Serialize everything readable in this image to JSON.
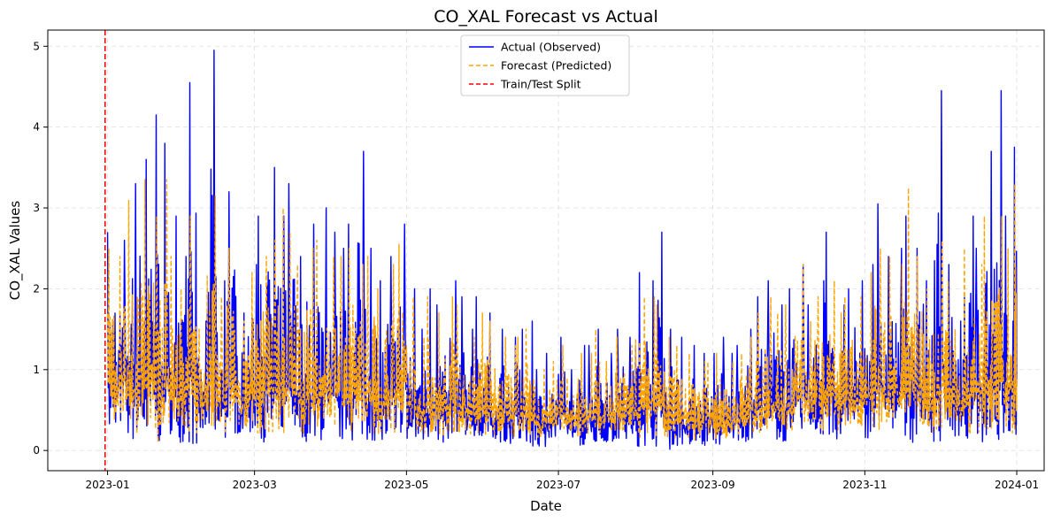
{
  "chart_data": {
    "type": "line",
    "title": "CO_XAL Forecast vs Actual",
    "xlabel": "Date",
    "ylabel": "CO_XAL Values",
    "xlim": [
      "2022-12-08",
      "2024-01-12"
    ],
    "ylim": [
      -0.25,
      5.2
    ],
    "x_ticks": [
      "2023-01",
      "2023-03",
      "2023-05",
      "2023-07",
      "2023-09",
      "2023-11",
      "2024-01"
    ],
    "y_ticks": [
      0,
      1,
      2,
      3,
      4,
      5
    ],
    "grid": true,
    "legend_position": "top-center",
    "split_date": "2022-12-31",
    "series": [
      {
        "name": "Actual (Observed)",
        "color": "#0000ff",
        "style": "solid",
        "x": [
          "2023-01-01",
          "2023-01-05",
          "2023-01-09",
          "2023-01-13",
          "2023-01-17",
          "2023-01-21",
          "2023-01-25",
          "2023-01-29",
          "2023-02-02",
          "2023-02-06",
          "2023-02-10",
          "2023-02-14",
          "2023-02-18",
          "2023-02-22",
          "2023-02-26",
          "2023-03-02",
          "2023-03-06",
          "2023-03-10",
          "2023-03-14",
          "2023-03-18",
          "2023-03-22",
          "2023-03-26",
          "2023-03-30",
          "2023-04-03",
          "2023-04-07",
          "2023-04-11",
          "2023-04-15",
          "2023-04-19",
          "2023-04-23",
          "2023-04-27",
          "2023-05-01",
          "2023-05-05",
          "2023-05-09",
          "2023-05-13",
          "2023-05-17",
          "2023-05-21",
          "2023-05-25",
          "2023-05-29",
          "2023-06-02",
          "2023-06-06",
          "2023-06-10",
          "2023-06-14",
          "2023-06-18",
          "2023-06-22",
          "2023-06-26",
          "2023-06-30",
          "2023-07-04",
          "2023-07-08",
          "2023-07-12",
          "2023-07-16",
          "2023-07-20",
          "2023-07-24",
          "2023-07-28",
          "2023-08-01",
          "2023-08-05",
          "2023-08-09",
          "2023-08-13",
          "2023-08-17",
          "2023-08-21",
          "2023-08-25",
          "2023-08-29",
          "2023-09-02",
          "2023-09-06",
          "2023-09-10",
          "2023-09-14",
          "2023-09-18",
          "2023-09-22",
          "2023-09-26",
          "2023-09-30",
          "2023-10-04",
          "2023-10-08",
          "2023-10-12",
          "2023-10-16",
          "2023-10-20",
          "2023-10-24",
          "2023-10-28",
          "2023-11-01",
          "2023-11-05",
          "2023-11-09",
          "2023-11-13",
          "2023-11-17",
          "2023-11-21",
          "2023-11-25",
          "2023-11-29",
          "2023-12-03",
          "2023-12-07",
          "2023-12-11",
          "2023-12-15",
          "2023-12-19",
          "2023-12-23",
          "2023-12-27",
          "2023-12-31"
        ],
        "max": [
          2.7,
          2.6,
          3.3,
          3.6,
          4.15,
          3.8,
          2.9,
          2.4,
          4.55,
          1.6,
          4.95,
          2.1,
          3.2,
          1.7,
          2.3,
          2.9,
          3.5,
          2.9,
          3.3,
          2.4,
          2.8,
          3.0,
          2.7,
          2.5,
          2.8,
          3.7,
          2.5,
          2.1,
          2.4,
          2.8,
          2.0,
          1.5,
          2.0,
          1.8,
          2.1,
          1.9,
          1.5,
          1.9,
          1.7,
          1.5,
          1.4,
          1.5,
          1.6,
          1.0,
          1.2,
          1.4,
          1.0,
          1.3,
          1.3,
          1.5,
          1.2,
          1.5,
          1.4,
          2.2,
          2.1,
          2.7,
          1.5,
          1.4,
          1.3,
          1.2,
          1.2,
          1.4,
          1.2,
          1.3,
          1.5,
          1.9,
          2.1,
          1.8,
          2.0,
          2.3,
          1.8,
          2.1,
          2.7,
          1.8,
          2.0,
          2.1,
          2.3,
          3.05,
          2.4,
          2.5,
          2.9,
          2.5,
          2.1,
          4.45,
          2.3,
          1.6,
          2.9,
          2.5,
          3.7,
          4.45,
          2.9,
          3.75
        ],
        "min": [
          0.2,
          0.3,
          0.1,
          0.1,
          0.1,
          0.05,
          0.2,
          0.1,
          0.05,
          0.2,
          0.1,
          0.15,
          0.2,
          0.2,
          0.2,
          0.1,
          0.1,
          0.05,
          0.1,
          0.1,
          0.1,
          0.1,
          0.15,
          0.1,
          0.1,
          0.15,
          0.1,
          0.05,
          0.1,
          0.2,
          0.05,
          0.1,
          0.1,
          0.05,
          0.1,
          0.1,
          0.1,
          0.05,
          0.05,
          0.1,
          0.05,
          0.1,
          0.05,
          0.05,
          0.1,
          0.15,
          0.1,
          0.05,
          0.1,
          0.05,
          0.1,
          0.1,
          0.1,
          0.05,
          0.1,
          0.05,
          0.0,
          0.05,
          0.0,
          0.05,
          0.1,
          0.05,
          0.05,
          0.1,
          0.1,
          0.1,
          0.15,
          0.1,
          0.1,
          0.15,
          0.2,
          0.15,
          0.2,
          0.1,
          0.2,
          0.2,
          0.15,
          0.1,
          0.2,
          0.2,
          0.1,
          0.2,
          0.1,
          0.1,
          0.2,
          0.15,
          0.1,
          0.1,
          0.15,
          0.1,
          0.1,
          0.1
        ]
      },
      {
        "name": "Forecast (Predicted)",
        "color": "#ffa500",
        "style": "dashed",
        "x": [
          "2023-01-01",
          "2023-01-05",
          "2023-01-09",
          "2023-01-13",
          "2023-01-17",
          "2023-01-21",
          "2023-01-25",
          "2023-01-29",
          "2023-02-02",
          "2023-02-06",
          "2023-02-10",
          "2023-02-14",
          "2023-02-18",
          "2023-02-22",
          "2023-02-26",
          "2023-03-02",
          "2023-03-06",
          "2023-03-10",
          "2023-03-14",
          "2023-03-18",
          "2023-03-22",
          "2023-03-26",
          "2023-03-30",
          "2023-04-03",
          "2023-04-07",
          "2023-04-11",
          "2023-04-15",
          "2023-04-19",
          "2023-04-23",
          "2023-04-27",
          "2023-05-01",
          "2023-05-05",
          "2023-05-09",
          "2023-05-13",
          "2023-05-17",
          "2023-05-21",
          "2023-05-25",
          "2023-05-29",
          "2023-06-02",
          "2023-06-06",
          "2023-06-10",
          "2023-06-14",
          "2023-06-18",
          "2023-06-22",
          "2023-06-26",
          "2023-06-30",
          "2023-07-04",
          "2023-07-08",
          "2023-07-12",
          "2023-07-16",
          "2023-07-20",
          "2023-07-24",
          "2023-07-28",
          "2023-08-01",
          "2023-08-05",
          "2023-08-09",
          "2023-08-13",
          "2023-08-17",
          "2023-08-21",
          "2023-08-25",
          "2023-08-29",
          "2023-09-02",
          "2023-09-06",
          "2023-09-10",
          "2023-09-14",
          "2023-09-18",
          "2023-09-22",
          "2023-09-26",
          "2023-09-30",
          "2023-10-04",
          "2023-10-08",
          "2023-10-12",
          "2023-10-16",
          "2023-10-20",
          "2023-10-24",
          "2023-10-28",
          "2023-11-01",
          "2023-11-05",
          "2023-11-09",
          "2023-11-13",
          "2023-11-17",
          "2023-11-21",
          "2023-11-25",
          "2023-11-29",
          "2023-12-03",
          "2023-12-07",
          "2023-12-11",
          "2023-12-15",
          "2023-12-19",
          "2023-12-23",
          "2023-12-27",
          "2023-12-31"
        ],
        "max": [
          2.5,
          2.4,
          3.1,
          3.35,
          2.9,
          3.35,
          2.4,
          2.0,
          2.9,
          1.5,
          3.15,
          1.9,
          2.5,
          1.6,
          2.2,
          2.4,
          2.6,
          3.0,
          2.7,
          2.3,
          2.5,
          2.6,
          2.4,
          2.4,
          2.5,
          2.3,
          2.4,
          2.0,
          2.3,
          2.55,
          1.9,
          1.4,
          1.9,
          1.7,
          1.9,
          1.8,
          1.4,
          1.7,
          1.6,
          1.4,
          1.3,
          1.4,
          1.5,
          1.0,
          1.1,
          1.3,
          0.9,
          1.2,
          1.2,
          1.5,
          1.1,
          1.4,
          1.3,
          1.9,
          1.9,
          1.8,
          1.4,
          1.3,
          1.2,
          1.1,
          1.1,
          1.2,
          1.1,
          1.2,
          1.4,
          1.7,
          1.9,
          1.7,
          1.8,
          2.3,
          1.6,
          1.9,
          2.1,
          1.7,
          1.9,
          1.9,
          2.2,
          2.5,
          2.4,
          2.3,
          3.25,
          2.4,
          2.0,
          2.6,
          2.1,
          1.5,
          2.5,
          2.3,
          2.9,
          2.9,
          2.5,
          3.3
        ],
        "min": [
          0.3,
          0.4,
          0.2,
          0.2,
          0.2,
          0.1,
          0.3,
          0.2,
          0.1,
          0.3,
          0.2,
          0.2,
          0.3,
          0.3,
          0.3,
          0.2,
          0.2,
          0.15,
          0.2,
          0.2,
          0.2,
          0.2,
          0.2,
          0.2,
          0.2,
          0.25,
          0.2,
          0.15,
          0.2,
          0.3,
          0.15,
          0.2,
          0.2,
          0.15,
          0.2,
          0.2,
          0.2,
          0.15,
          0.15,
          0.2,
          0.15,
          0.2,
          0.15,
          0.15,
          0.2,
          0.25,
          0.2,
          0.15,
          0.2,
          0.15,
          0.2,
          0.2,
          0.2,
          0.15,
          0.2,
          0.15,
          0.1,
          0.15,
          0.1,
          0.15,
          0.2,
          0.15,
          0.15,
          0.2,
          0.2,
          0.2,
          0.25,
          0.2,
          0.2,
          0.25,
          0.3,
          0.25,
          0.3,
          0.2,
          0.3,
          0.3,
          0.25,
          0.2,
          0.3,
          0.3,
          0.2,
          0.3,
          0.2,
          0.2,
          0.3,
          0.25,
          0.2,
          0.2,
          0.25,
          0.2,
          0.2,
          0.2
        ]
      }
    ],
    "legend": [
      {
        "label": "Actual (Observed)",
        "color": "#0000ff",
        "style": "solid"
      },
      {
        "label": "Forecast (Predicted)",
        "color": "#ffa500",
        "style": "dashed"
      },
      {
        "label": "Train/Test Split",
        "color": "#ff0000",
        "style": "dashed"
      }
    ]
  }
}
